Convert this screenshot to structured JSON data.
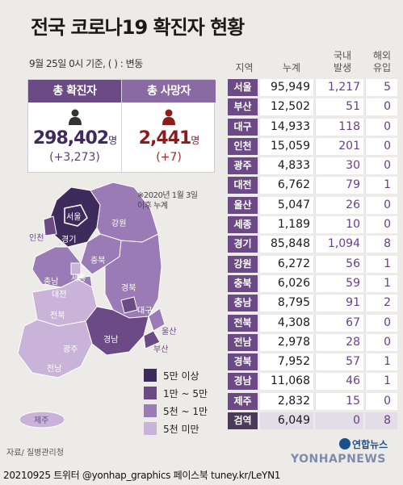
{
  "title": "전국 코로나19 확진자 현황",
  "date_note": "9월 25일 0시 기준, ( ) : 변동",
  "summary": {
    "confirmed": {
      "label": "총 확진자",
      "value": "298,402",
      "unit": "명",
      "delta": "(+3,273)"
    },
    "deaths": {
      "label": "총 사망자",
      "value": "2,441",
      "unit": "명",
      "delta": "(+7)"
    }
  },
  "table": {
    "headers": {
      "region": "지역",
      "total": "누계",
      "domestic": "국내\n발생",
      "imported": "해외\n유입"
    },
    "rows": [
      {
        "region": "서울",
        "total": "95,949",
        "domestic": "1,217",
        "imported": "5"
      },
      {
        "region": "부산",
        "total": "12,502",
        "domestic": "51",
        "imported": "0"
      },
      {
        "region": "대구",
        "total": "14,933",
        "domestic": "118",
        "imported": "0"
      },
      {
        "region": "인천",
        "total": "15,059",
        "domestic": "201",
        "imported": "0"
      },
      {
        "region": "광주",
        "total": "4,833",
        "domestic": "30",
        "imported": "0"
      },
      {
        "region": "대전",
        "total": "6,762",
        "domestic": "79",
        "imported": "1"
      },
      {
        "region": "울산",
        "total": "5,047",
        "domestic": "26",
        "imported": "0"
      },
      {
        "region": "세종",
        "total": "1,189",
        "domestic": "10",
        "imported": "0"
      },
      {
        "region": "경기",
        "total": "85,848",
        "domestic": "1,094",
        "imported": "8"
      },
      {
        "region": "강원",
        "total": "6,272",
        "domestic": "56",
        "imported": "1"
      },
      {
        "region": "충북",
        "total": "6,026",
        "domestic": "59",
        "imported": "1"
      },
      {
        "region": "충남",
        "total": "8,795",
        "domestic": "91",
        "imported": "2"
      },
      {
        "region": "전북",
        "total": "4,308",
        "domestic": "67",
        "imported": "0"
      },
      {
        "region": "전남",
        "total": "2,978",
        "domestic": "28",
        "imported": "0"
      },
      {
        "region": "경북",
        "total": "7,952",
        "domestic": "57",
        "imported": "1"
      },
      {
        "region": "경남",
        "total": "11,068",
        "domestic": "46",
        "imported": "1"
      },
      {
        "region": "제주",
        "total": "2,832",
        "domestic": "15",
        "imported": "0"
      },
      {
        "region": "검역",
        "total": "6,049",
        "domestic": "0",
        "imported": "8"
      }
    ]
  },
  "map": {
    "note": "※2020년 1월 3일\n이후 누계",
    "labels": [
      "서울",
      "인천",
      "경기",
      "강원",
      "충북",
      "세종",
      "충남",
      "대전",
      "경북",
      "대구",
      "전북",
      "울산",
      "경남",
      "부산",
      "광주",
      "전남",
      "제주"
    ],
    "legend": [
      {
        "label": "5만 이상",
        "color": "#3f2a5c"
      },
      {
        "label": "1만 ~ 5만",
        "color": "#6b4a86"
      },
      {
        "label": "5천 ~ 1만",
        "color": "#9b7bb5"
      },
      {
        "label": "5천 미만",
        "color": "#c9b3d8"
      }
    ]
  },
  "source": "자료/ 질병관리청",
  "credit": "20210925 트위터 @yonhap_graphics  페이스북 tuney.kr/LeYN1",
  "logo": "연합뉴스",
  "watermark": "YONHAPNEWS"
}
